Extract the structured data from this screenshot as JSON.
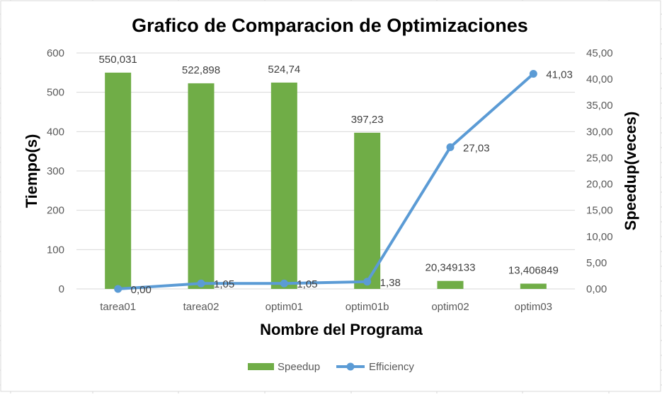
{
  "chart_data": {
    "type": "bar",
    "title": "Grafico de Comparacion de Optimizaciones",
    "xlabel": "Nombre del Programa",
    "ylabel": "Tiempo(s)",
    "y2label": "Speedup(veces)",
    "categories": [
      "tarea01",
      "tarea02",
      "optim01",
      "optim01b",
      "optim02",
      "optim03"
    ],
    "ylim": [
      0,
      600
    ],
    "y_ticks": [
      "0",
      "100",
      "200",
      "300",
      "400",
      "500",
      "600"
    ],
    "y2lim": [
      0,
      45
    ],
    "y2_ticks": [
      "0,00",
      "5,00",
      "10,00",
      "15,00",
      "20,00",
      "25,00",
      "30,00",
      "35,00",
      "40,00",
      "45,00"
    ],
    "series": [
      {
        "name": "Speedup",
        "type": "bar",
        "axis": "left",
        "color": "#70ad47",
        "values": [
          550.031,
          522.898,
          524.74,
          397.23,
          20.349133,
          13.406849
        ],
        "labels": [
          "550,031",
          "522,898",
          "524,74",
          "397,23",
          "20,349133",
          "13,406849"
        ]
      },
      {
        "name": "Efficiency",
        "type": "line",
        "axis": "right",
        "color": "#5b9bd5",
        "values": [
          0.0,
          1.05,
          1.05,
          1.38,
          27.03,
          41.03
        ],
        "labels": [
          "0,00",
          "1,05",
          "1,05",
          "1,38",
          "27,03",
          "41,03"
        ]
      }
    ],
    "grid": true,
    "legend_position": "bottom"
  }
}
